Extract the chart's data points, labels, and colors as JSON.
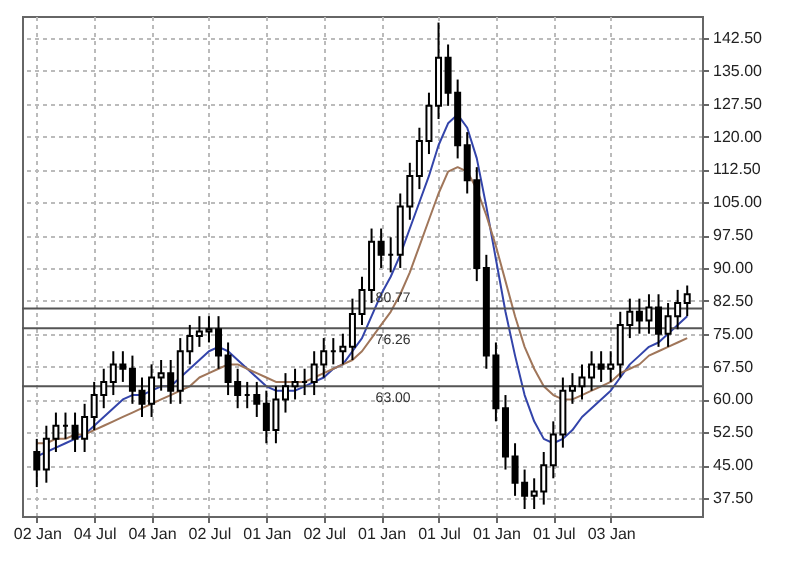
{
  "chart_data": {
    "type": "candlestick",
    "categories": [
      "02 Jan",
      null,
      null,
      null,
      null,
      null,
      "04 Jul",
      null,
      null,
      null,
      null,
      null,
      "04 Jan",
      null,
      null,
      null,
      null,
      null,
      "02 Jul",
      null,
      null,
      null,
      null,
      null,
      "01 Jan",
      null,
      null,
      null,
      null,
      null,
      "02 Jul",
      null,
      null,
      null,
      null,
      null,
      "01 Jan",
      null,
      null,
      null,
      null,
      null,
      "01 Jul",
      null,
      null,
      null,
      null,
      null,
      "01 Jan",
      null,
      null,
      null,
      null,
      null,
      "01 Jul",
      null,
      null,
      null,
      null,
      null,
      "03 Jan",
      null,
      null,
      null,
      null,
      null,
      null,
      null,
      null
    ],
    "ohlc": [
      [
        48,
        51,
        40,
        44
      ],
      [
        44,
        54,
        41,
        51
      ],
      [
        51,
        57,
        48,
        54
      ],
      [
        54,
        57,
        51,
        54
      ],
      [
        54,
        57,
        48,
        51
      ],
      [
        51,
        59,
        48,
        56
      ],
      [
        56,
        64,
        53,
        61
      ],
      [
        61,
        67,
        58,
        64
      ],
      [
        64,
        71,
        61,
        68
      ],
      [
        68,
        71,
        64,
        67
      ],
      [
        67,
        70,
        59,
        62
      ],
      [
        62,
        65,
        56,
        59
      ],
      [
        59,
        68,
        56,
        65
      ],
      [
        65,
        69,
        62,
        66
      ],
      [
        66,
        69,
        59,
        62
      ],
      [
        62,
        74,
        59,
        71
      ],
      [
        71,
        77,
        68,
        74.5
      ],
      [
        74.5,
        79,
        72,
        75.5
      ],
      [
        75.5,
        79,
        73,
        76
      ],
      [
        76,
        79,
        67,
        70
      ],
      [
        70,
        73,
        61,
        64
      ],
      [
        64,
        67,
        58,
        61
      ],
      [
        61,
        64,
        58,
        61
      ],
      [
        61,
        64,
        56,
        59
      ],
      [
        59,
        62,
        50,
        53
      ],
      [
        53,
        63,
        50,
        60
      ],
      [
        60,
        66,
        57,
        63
      ],
      [
        63,
        67,
        60,
        64
      ],
      [
        64,
        67,
        61,
        64
      ],
      [
        64,
        71,
        61,
        68
      ],
      [
        68,
        74,
        65,
        71
      ],
      [
        71,
        74,
        68,
        71
      ],
      [
        71,
        75,
        68,
        72
      ],
      [
        72,
        83,
        69,
        79.5
      ],
      [
        79.5,
        88,
        77,
        85
      ],
      [
        85,
        99,
        82,
        96
      ],
      [
        96,
        99,
        90,
        93
      ],
      [
        93,
        97,
        89,
        93
      ],
      [
        93,
        107,
        90,
        104
      ],
      [
        104,
        114,
        101,
        111
      ],
      [
        111,
        122,
        108,
        119
      ],
      [
        119,
        130,
        116,
        127
      ],
      [
        127,
        146,
        124,
        138
      ],
      [
        138,
        141,
        127,
        130
      ],
      [
        130,
        133,
        115,
        118
      ],
      [
        118,
        121,
        107,
        110
      ],
      [
        110,
        113,
        87,
        90
      ],
      [
        90,
        93,
        67,
        70
      ],
      [
        70,
        73,
        55,
        58
      ],
      [
        58,
        61,
        44,
        47
      ],
      [
        47,
        50,
        38,
        41
      ],
      [
        41,
        44,
        35,
        38
      ],
      [
        38,
        42,
        35,
        39
      ],
      [
        39,
        48,
        36,
        45
      ],
      [
        45,
        55,
        42,
        52
      ],
      [
        52,
        65,
        49,
        62
      ],
      [
        62,
        66,
        59,
        63
      ],
      [
        63,
        68,
        60,
        65
      ],
      [
        65,
        71,
        62,
        68
      ],
      [
        68,
        71,
        64,
        67
      ],
      [
        67,
        71,
        64,
        68
      ],
      [
        68,
        80,
        65,
        77
      ],
      [
        77,
        83,
        74,
        80
      ],
      [
        80,
        83,
        75,
        78
      ],
      [
        78,
        84,
        75,
        81
      ],
      [
        81,
        84,
        72,
        75
      ],
      [
        75,
        82,
        72,
        79
      ],
      [
        79,
        85,
        76,
        82
      ],
      [
        82,
        86,
        79,
        84
      ]
    ],
    "color": "#000000",
    "series": [
      {
        "type": "line",
        "color": "#3344aa",
        "values": [
          47,
          48,
          49,
          50,
          51,
          52,
          54,
          56,
          58,
          60,
          61,
          61,
          62,
          63,
          63,
          65,
          67,
          69,
          71,
          72,
          71,
          69,
          67,
          65,
          63,
          62,
          62,
          62,
          63,
          64,
          65,
          67,
          68,
          71,
          74,
          79,
          84,
          88,
          93,
          99,
          105,
          111,
          118,
          123,
          125,
          122,
          115,
          104,
          92,
          80,
          70,
          61,
          55,
          51,
          50,
          51,
          53,
          56,
          58,
          60,
          62,
          65,
          68,
          70,
          72,
          73,
          75,
          77,
          79
        ]
      },
      {
        "type": "line",
        "color": "#a0765a",
        "values": [
          50,
          50,
          51,
          51,
          52,
          52,
          53,
          54,
          55,
          56,
          57,
          58,
          59,
          60,
          61,
          62,
          63,
          65,
          66,
          67,
          68,
          68,
          67,
          66,
          65,
          64,
          64,
          64,
          64,
          65,
          66,
          67,
          68,
          69,
          71,
          74,
          77,
          80,
          84,
          89,
          95,
          101,
          107,
          112,
          113,
          112,
          108,
          102,
          95,
          87,
          79,
          72,
          67,
          63,
          61,
          60,
          60,
          61,
          62,
          63,
          64,
          66,
          67,
          68,
          70,
          71,
          72,
          73,
          74
        ]
      }
    ],
    "ylim": [
      33.4,
      147.5
    ],
    "yticks": [
      {
        "value": 37.5,
        "label": "37.50"
      },
      {
        "value": 45,
        "label": "45.00"
      },
      {
        "value": 52.5,
        "label": "52.50"
      },
      {
        "value": 60,
        "label": "60.00"
      },
      {
        "value": 67.5,
        "label": "67.50"
      },
      {
        "value": 75,
        "label": "75.00"
      },
      {
        "value": 82.5,
        "label": "82.50"
      },
      {
        "value": 90,
        "label": "90.00"
      },
      {
        "value": 97.5,
        "label": "97.50"
      },
      {
        "value": 105,
        "label": "105.00"
      },
      {
        "value": 112.5,
        "label": "112.50"
      },
      {
        "value": 120,
        "label": "120.00"
      },
      {
        "value": 127.5,
        "label": "127.50"
      },
      {
        "value": 135,
        "label": "135.00"
      },
      {
        "value": 142.5,
        "label": "142.50"
      }
    ],
    "ref_lines": [
      {
        "axis": "y",
        "value": 80.77,
        "label": "80.77",
        "color": "#555555"
      },
      {
        "axis": "y",
        "value": 76.26,
        "label": "76.26",
        "color": "#555555"
      },
      {
        "axis": "y",
        "value": 63.0,
        "label": "63.00",
        "color": "#555555"
      }
    ],
    "grid": true
  }
}
